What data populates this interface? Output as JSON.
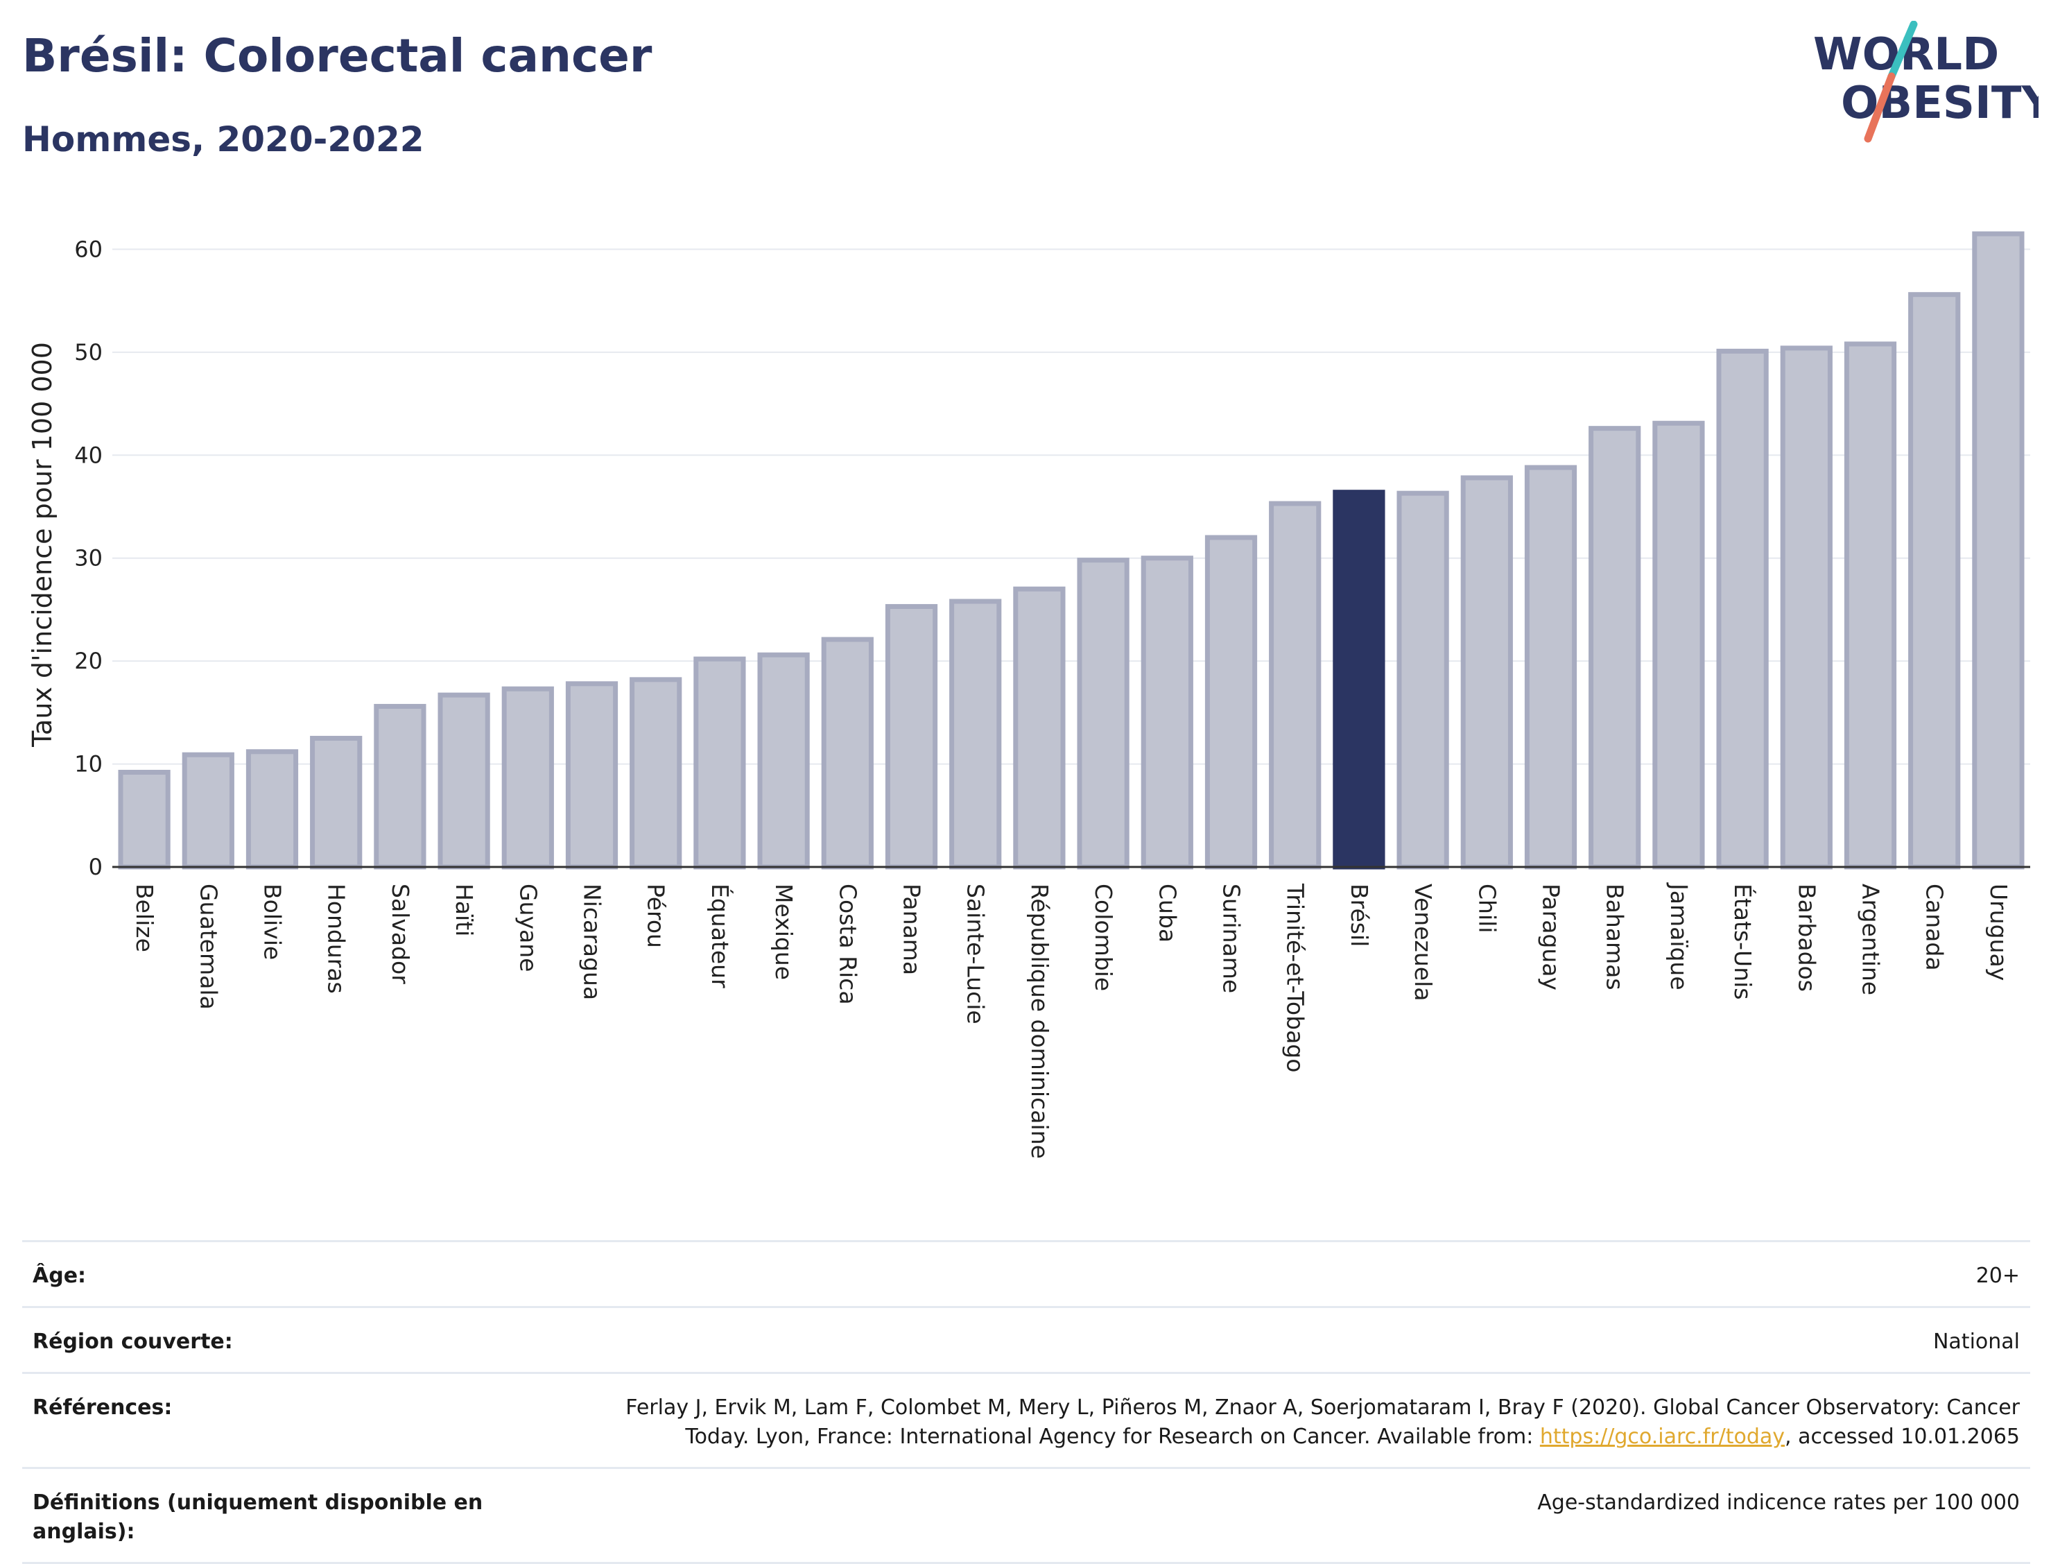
{
  "header": {
    "title": "Brésil: Colorectal cancer",
    "subtitle": "Hommes, 2020-2022"
  },
  "logo": {
    "text_line1": "WORLD",
    "text_line2": "OBESITY",
    "text_color": "#2b3562",
    "slash_colors": [
      "#3bbfbf",
      "#e8735a"
    ]
  },
  "chart_data": {
    "type": "bar",
    "title": "Brésil: Colorectal cancer",
    "subtitle": "Hommes, 2020-2022",
    "xlabel": "",
    "ylabel": "Taux d'incidence pour 100 000",
    "ylim": [
      0,
      64
    ],
    "yticks": [
      0,
      10,
      20,
      30,
      40,
      50,
      60
    ],
    "grid": true,
    "highlight": "Brésil",
    "colors": {
      "bar": "#c0c3d0",
      "bar_border": "#a7abc0",
      "highlight": "#2b3562"
    },
    "categories": [
      "Belize",
      "Guatemala",
      "Bolivie",
      "Honduras",
      "Salvador",
      "Haïti",
      "Guyane",
      "Nicaragua",
      "Pérou",
      "Équateur",
      "Mexique",
      "Costa Rica",
      "Panama",
      "Sainte-Lucie",
      "République dominicaine",
      "Colombie",
      "Cuba",
      "Suriname",
      "Trinité-et-Tobago",
      "Brésil",
      "Venezuela",
      "Chili",
      "Paraguay",
      "Bahamas",
      "Jamaïque",
      "États-Unis",
      "Barbados",
      "Argentine",
      "Canada",
      "Uruguay"
    ],
    "values": [
      9.2,
      10.9,
      11.2,
      12.5,
      15.6,
      16.7,
      17.3,
      17.8,
      18.2,
      20.2,
      20.6,
      22.1,
      25.3,
      25.8,
      27.0,
      29.8,
      30.0,
      32.0,
      35.3,
      36.4,
      36.3,
      37.8,
      38.8,
      42.6,
      43.1,
      50.1,
      50.4,
      50.8,
      55.6,
      61.5
    ]
  },
  "meta": [
    {
      "key": "Âge:",
      "value": "20+"
    },
    {
      "key": "Région couverte:",
      "value": "National"
    },
    {
      "key": "Références:",
      "value_before": "Ferlay J, Ervik M, Lam F, Colombet M, Mery L, Piñeros M, Znaor A, Soerjomataram I, Bray F (2020). Global Cancer Observatory: Cancer Today. Lyon, France: International Agency for Research on Cancer. Available from: ",
      "link": "https://gco.iarc.fr/today",
      "value_after": ", accessed 10.01.2065"
    },
    {
      "key": "Définitions (uniquement disponible en anglais):",
      "value": "Age-standardized indicence rates per 100 000"
    }
  ]
}
